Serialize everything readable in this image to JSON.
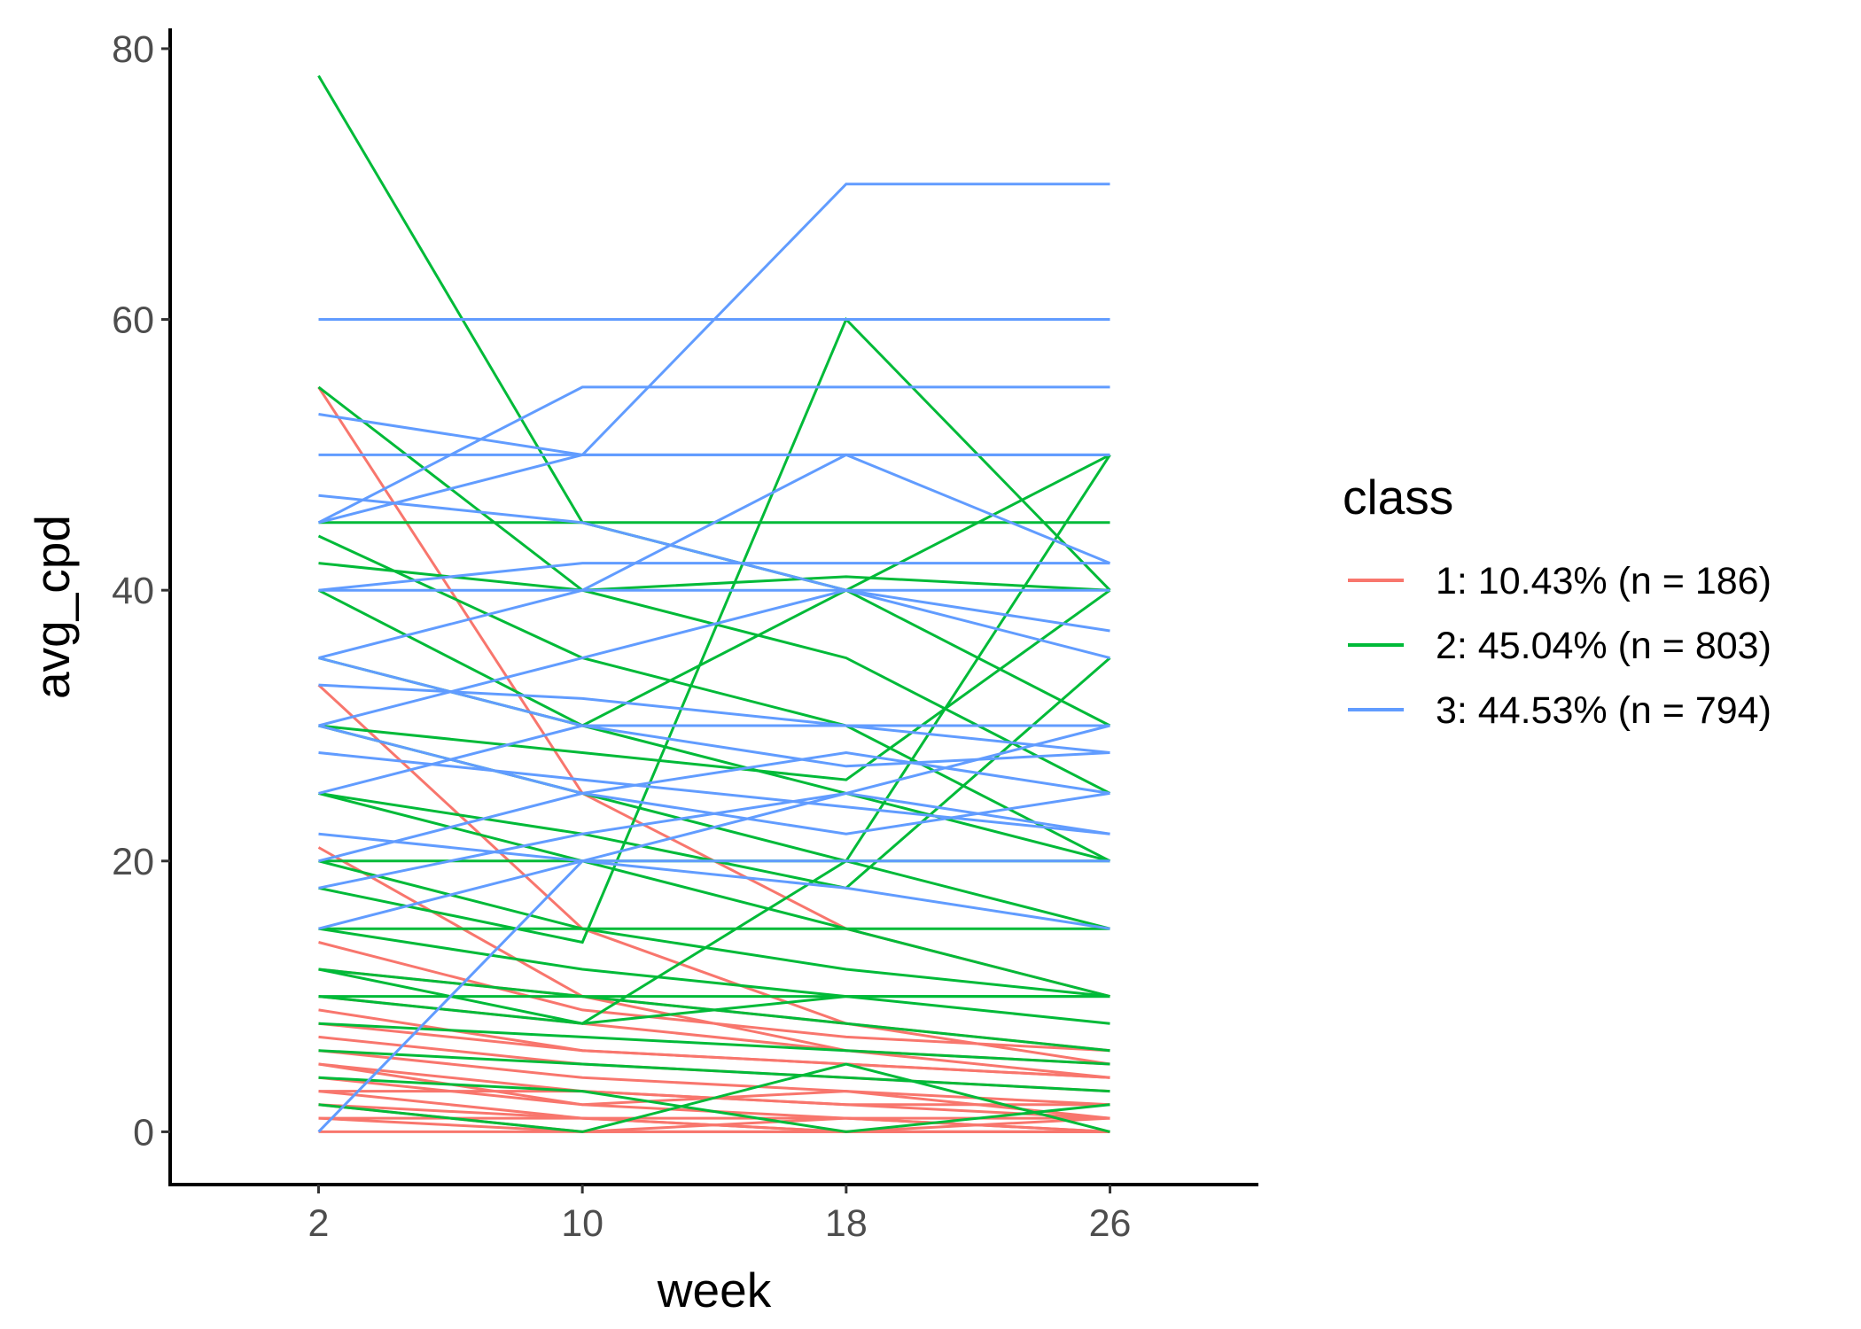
{
  "chart_data": {
    "type": "line",
    "xlabel": "week",
    "ylabel": "avg_cpd",
    "x": [
      2,
      10,
      18,
      26
    ],
    "xlim": [
      -2.5,
      30.5
    ],
    "ylim": [
      -3.9,
      81.5
    ],
    "x_ticks": [
      2,
      10,
      18,
      26
    ],
    "y_ticks": [
      0,
      20,
      40,
      60,
      80
    ],
    "grid": false,
    "legend": {
      "title": "class",
      "position": "right",
      "entries": [
        {
          "label": "1: 10.43% (n = 186)",
          "color": "#F8766D"
        },
        {
          "label": "2: 45.04% (n = 803)",
          "color": "#00BA38"
        },
        {
          "label": "3: 44.53% (n = 794)",
          "color": "#619CFF"
        }
      ]
    },
    "series": [
      {
        "class": 1,
        "n": 186,
        "color": "#F8766D",
        "lines": [
          [
            55,
            25,
            15,
            10
          ],
          [
            21,
            10,
            6,
            4
          ],
          [
            12,
            10,
            8,
            6
          ],
          [
            10,
            8,
            6,
            5
          ],
          [
            8,
            6,
            5,
            4
          ],
          [
            6,
            4,
            3,
            2
          ],
          [
            5,
            3,
            2,
            1
          ],
          [
            4,
            2,
            1,
            0
          ],
          [
            3,
            1,
            0,
            0
          ],
          [
            2,
            1,
            1,
            0
          ],
          [
            1,
            0,
            0,
            0
          ],
          [
            0,
            0,
            0,
            0
          ],
          [
            7,
            5,
            4,
            3
          ],
          [
            9,
            6,
            5,
            4
          ],
          [
            33,
            15,
            8,
            5
          ],
          [
            14,
            9,
            7,
            6
          ],
          [
            5,
            2,
            3,
            1
          ],
          [
            3,
            3,
            2,
            2
          ],
          [
            2,
            0,
            1,
            1
          ],
          [
            1,
            1,
            0,
            1
          ]
        ]
      },
      {
        "class": 2,
        "n": 803,
        "color": "#00BA38",
        "lines": [
          [
            78,
            45,
            40,
            30
          ],
          [
            55,
            40,
            35,
            25
          ],
          [
            44,
            35,
            30,
            20
          ],
          [
            42,
            40,
            41,
            40
          ],
          [
            40,
            30,
            40,
            50
          ],
          [
            35,
            30,
            25,
            20
          ],
          [
            30,
            25,
            20,
            15
          ],
          [
            25,
            20,
            15,
            10
          ],
          [
            20,
            15,
            12,
            10
          ],
          [
            15,
            12,
            10,
            8
          ],
          [
            12,
            10,
            8,
            6
          ],
          [
            10,
            8,
            10,
            10
          ],
          [
            8,
            7,
            6,
            5
          ],
          [
            6,
            5,
            4,
            3
          ],
          [
            4,
            3,
            0,
            2
          ],
          [
            2,
            0,
            5,
            0
          ],
          [
            45,
            45,
            45,
            45
          ],
          [
            20,
            20,
            20,
            20
          ],
          [
            10,
            10,
            10,
            10
          ],
          [
            15,
            15,
            15,
            15
          ],
          [
            18,
            14,
            60,
            40
          ],
          [
            25,
            22,
            18,
            35
          ],
          [
            30,
            28,
            26,
            40
          ],
          [
            12,
            8,
            20,
            50
          ]
        ]
      },
      {
        "class": 3,
        "n": 794,
        "color": "#619CFF",
        "lines": [
          [
            60,
            60,
            60,
            60
          ],
          [
            50,
            50,
            50,
            50
          ],
          [
            45,
            55,
            55,
            55
          ],
          [
            40,
            40,
            40,
            40
          ],
          [
            45,
            50,
            70,
            70
          ],
          [
            35,
            40,
            50,
            42
          ],
          [
            30,
            35,
            40,
            37
          ],
          [
            25,
            30,
            30,
            30
          ],
          [
            20,
            25,
            28,
            25
          ],
          [
            18,
            22,
            25,
            22
          ],
          [
            15,
            20,
            20,
            20
          ],
          [
            30,
            25,
            22,
            25
          ],
          [
            28,
            26,
            24,
            22
          ],
          [
            35,
            30,
            27,
            28
          ],
          [
            40,
            42,
            42,
            42
          ],
          [
            22,
            20,
            18,
            15
          ],
          [
            53,
            50,
            50,
            50
          ],
          [
            47,
            45,
            40,
            35
          ],
          [
            33,
            32,
            30,
            28
          ],
          [
            0,
            20,
            25,
            30
          ]
        ]
      }
    ]
  }
}
